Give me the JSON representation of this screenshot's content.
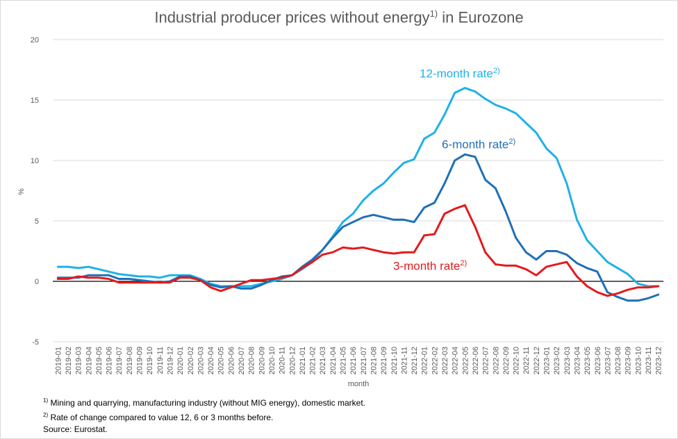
{
  "title": {
    "text": "Industrial producer prices without energy",
    "sup": "1)",
    "suffix": " in Eurozone"
  },
  "colors": {
    "twelve": "#1fb1e6",
    "six": "#1f6fb5",
    "three": "#e31a1c",
    "zero_line": "#000000",
    "grid": "#d9d9d9"
  },
  "series_labels": [
    {
      "text": "12-month rate",
      "sup": "2)"
    },
    {
      "text": "6-month rate",
      "sup": "2)"
    },
    {
      "text": "3-month rate",
      "sup": "2)"
    }
  ],
  "footnotes": [
    {
      "sup": "1)",
      "text": " Mining and quarrying, manufacturing industry (without MIG energy), domestic market."
    },
    {
      "sup": "2)",
      "text": " Rate of change compared to value 12, 6 or 3 months before."
    },
    {
      "sup": "",
      "text": "Source: Eurostat."
    }
  ],
  "chart_data": {
    "type": "line",
    "title": "Industrial producer prices without energy1) in Eurozone",
    "xlabel": "month",
    "ylabel": "%",
    "ylim": [
      -5,
      20
    ],
    "yticks": [
      -5,
      0,
      5,
      10,
      15,
      20
    ],
    "grid": true,
    "categories": [
      "2019-01",
      "2019-02",
      "2019-03",
      "2019-04",
      "2019-05",
      "2019-06",
      "2019-07",
      "2019-08",
      "2019-09",
      "2019-10",
      "2019-11",
      "2019-12",
      "2020-01",
      "2020-02",
      "2020-03",
      "2020-04",
      "2020-05",
      "2020-06",
      "2020-07",
      "2020-08",
      "2020-09",
      "2020-10",
      "2020-11",
      "2020-12",
      "2021-01",
      "2021-02",
      "2021-03",
      "2021-04",
      "2021-05",
      "2021-06",
      "2021-07",
      "2021-08",
      "2021-09",
      "2021-10",
      "2021-11",
      "2021-12",
      "2022-01",
      "2022-02",
      "2022-03",
      "2022-04",
      "2022-05",
      "2022-06",
      "2022-07",
      "2022-08",
      "2022-09",
      "2022-10",
      "2022-11",
      "2022-12",
      "2023-01",
      "2023-02",
      "2023-03",
      "2023-04",
      "2023-05",
      "2023-06",
      "2023-07",
      "2023-08",
      "2023-09",
      "2023-10",
      "2023-11",
      "2023-12"
    ],
    "series": [
      {
        "name": "12-month rate",
        "color": "#1fb1e6",
        "values": [
          1.2,
          1.2,
          1.1,
          1.2,
          1.0,
          0.8,
          0.6,
          0.5,
          0.4,
          0.4,
          0.3,
          0.5,
          0.5,
          0.5,
          0.2,
          -0.2,
          -0.4,
          -0.4,
          -0.4,
          -0.4,
          -0.2,
          0.0,
          0.2,
          0.5,
          1.0,
          1.6,
          2.6,
          3.7,
          4.9,
          5.6,
          6.7,
          7.5,
          8.1,
          9.0,
          9.8,
          10.1,
          11.8,
          12.3,
          13.8,
          15.6,
          16.0,
          15.7,
          15.1,
          14.6,
          14.3,
          13.9,
          13.1,
          12.3,
          11.0,
          10.2,
          8.1,
          5.1,
          3.4,
          2.5,
          1.6,
          1.1,
          0.6,
          -0.2,
          -0.4,
          -0.4
        ]
      },
      {
        "name": "6-month rate",
        "color": "#1f6fb5",
        "values": [
          0.3,
          0.3,
          0.3,
          0.5,
          0.5,
          0.5,
          0.2,
          0.2,
          0.1,
          0.0,
          -0.1,
          0.0,
          0.4,
          0.4,
          0.1,
          -0.3,
          -0.5,
          -0.4,
          -0.6,
          -0.6,
          -0.3,
          0.1,
          0.4,
          0.5,
          1.2,
          1.8,
          2.6,
          3.6,
          4.5,
          4.9,
          5.3,
          5.5,
          5.3,
          5.1,
          5.1,
          4.9,
          6.1,
          6.5,
          8.1,
          10.0,
          10.5,
          10.3,
          8.4,
          7.7,
          5.8,
          3.6,
          2.4,
          1.8,
          2.5,
          2.5,
          2.2,
          1.5,
          1.1,
          0.8,
          -0.9,
          -1.3,
          -1.6,
          -1.6,
          -1.4,
          -1.1
        ]
      },
      {
        "name": "3-month rate",
        "color": "#e31a1c",
        "values": [
          0.2,
          0.2,
          0.4,
          0.3,
          0.3,
          0.2,
          -0.1,
          -0.1,
          -0.1,
          -0.1,
          -0.1,
          -0.1,
          0.3,
          0.3,
          0.1,
          -0.5,
          -0.8,
          -0.5,
          -0.2,
          0.1,
          0.1,
          0.2,
          0.3,
          0.5,
          1.1,
          1.6,
          2.2,
          2.4,
          2.8,
          2.7,
          2.8,
          2.6,
          2.4,
          2.3,
          2.4,
          2.4,
          3.8,
          3.9,
          5.6,
          6.0,
          6.3,
          4.5,
          2.4,
          1.4,
          1.3,
          1.3,
          1.0,
          0.5,
          1.2,
          1.4,
          1.6,
          0.4,
          -0.4,
          -0.9,
          -1.2,
          -1.0,
          -0.7,
          -0.5,
          -0.5,
          -0.4
        ]
      }
    ]
  },
  "x_axis_title": "month"
}
